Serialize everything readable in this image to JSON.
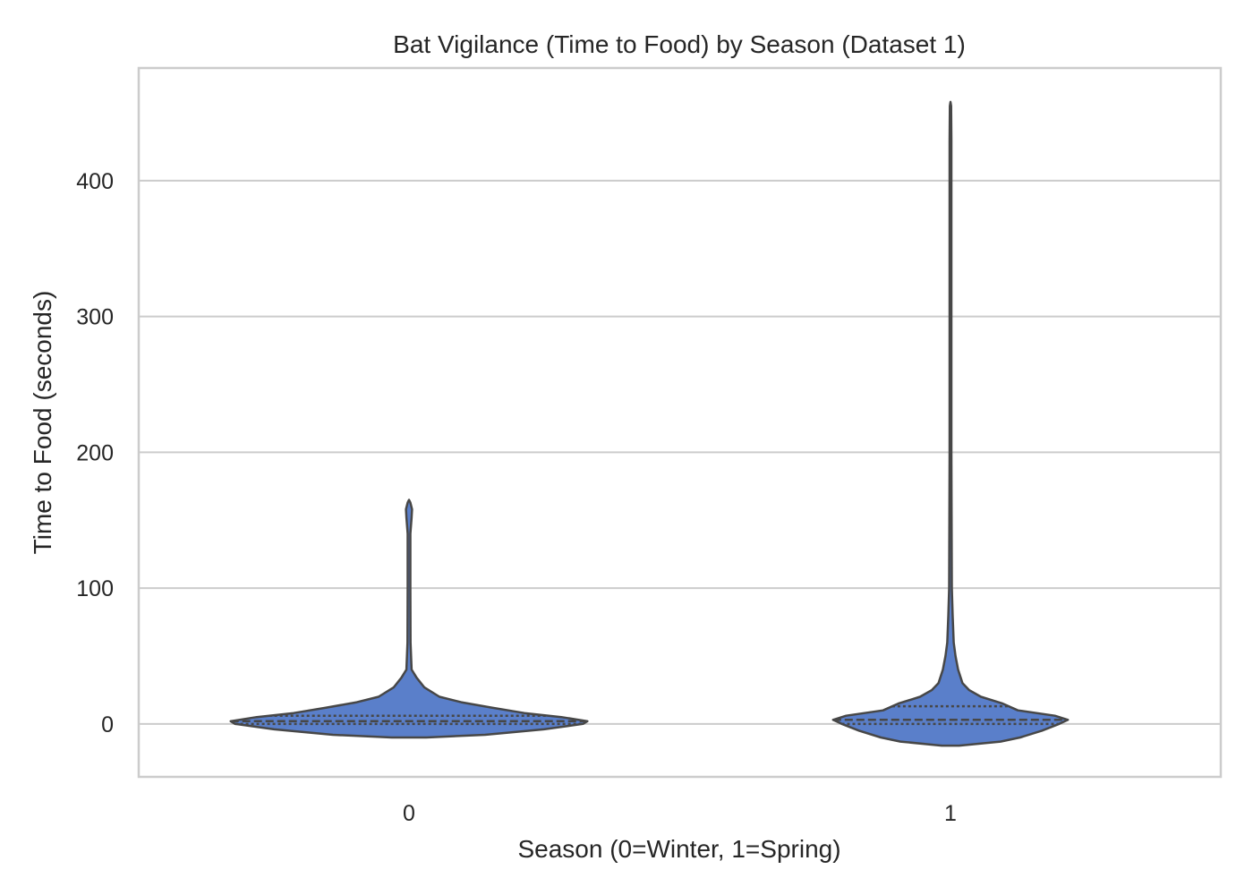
{
  "chart_data": {
    "type": "violin",
    "title": "Bat Vigilance (Time to Food) by Season (Dataset 1)",
    "xlabel": "Season (0=Winter, 1=Spring)",
    "ylabel": "Time to Food (seconds)",
    "categories": [
      "0",
      "1"
    ],
    "ylim": [
      -39,
      483
    ],
    "yticks": [
      0,
      100,
      200,
      300,
      400
    ],
    "grid": true,
    "inner": "quartile",
    "color": "#5a7fca",
    "edge_color": "#474747",
    "grid_color": "#cccccc",
    "violins": [
      {
        "category": "0",
        "quartiles": [
          0,
          2,
          6
        ],
        "profile": [
          [
            -10,
            0.08
          ],
          [
            -8,
            0.35
          ],
          [
            -4,
            0.62
          ],
          [
            0,
            0.8
          ],
          [
            2,
            0.82
          ],
          [
            5,
            0.7
          ],
          [
            8,
            0.53
          ],
          [
            12,
            0.38
          ],
          [
            16,
            0.24
          ],
          [
            20,
            0.14
          ],
          [
            27,
            0.07
          ],
          [
            34,
            0.035
          ],
          [
            40,
            0.012
          ],
          [
            60,
            0.007
          ],
          [
            100,
            0.006
          ],
          [
            140,
            0.006
          ],
          [
            152,
            0.012
          ],
          [
            158,
            0.014
          ],
          [
            163,
            0.006
          ],
          [
            165,
            0.0
          ]
        ]
      },
      {
        "category": "1",
        "quartiles": [
          0,
          3,
          13
        ],
        "profile": [
          [
            -16,
            0.04
          ],
          [
            -13,
            0.23
          ],
          [
            -10,
            0.32
          ],
          [
            -5,
            0.42
          ],
          [
            0,
            0.5
          ],
          [
            3,
            0.54
          ],
          [
            6,
            0.48
          ],
          [
            10,
            0.31
          ],
          [
            15,
            0.24
          ],
          [
            20,
            0.14
          ],
          [
            25,
            0.085
          ],
          [
            30,
            0.055
          ],
          [
            40,
            0.035
          ],
          [
            50,
            0.023
          ],
          [
            60,
            0.015
          ],
          [
            80,
            0.01
          ],
          [
            100,
            0.006
          ],
          [
            200,
            0.004
          ],
          [
            300,
            0.004
          ],
          [
            430,
            0.004
          ],
          [
            455,
            0.003
          ],
          [
            458,
            0.0
          ]
        ]
      }
    ]
  }
}
